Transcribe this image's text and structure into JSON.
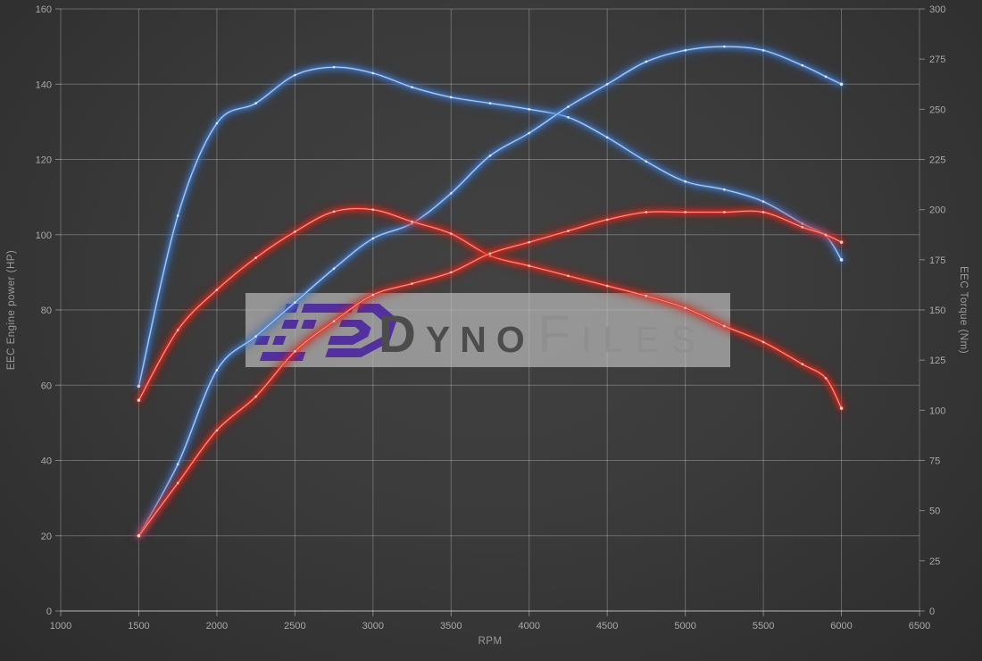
{
  "chart_data": {
    "type": "line",
    "title": "",
    "xlabel": "RPM",
    "ylabel_left": "EEC Engine power (HP)",
    "ylabel_right": "EEC Torque (Nm)",
    "xlim": [
      1000,
      6500
    ],
    "ylim_left": [
      0,
      160
    ],
    "ylim_right": [
      0,
      300
    ],
    "grid": true,
    "x_ticks": [
      1000,
      1500,
      2000,
      2500,
      3000,
      3500,
      4000,
      4500,
      5000,
      5500,
      6000,
      6500
    ],
    "y_left_ticks": [
      0,
      20,
      40,
      60,
      80,
      100,
      120,
      140,
      160
    ],
    "y_right_ticks": [
      0,
      25,
      50,
      75,
      100,
      125,
      150,
      175,
      200,
      225,
      250,
      275,
      300
    ],
    "x": [
      1500,
      1750,
      2000,
      2250,
      2500,
      2750,
      3000,
      3250,
      3500,
      3750,
      4000,
      4250,
      4500,
      4750,
      5000,
      5250,
      5500,
      5750,
      5900,
      6000
    ],
    "series": [
      {
        "name": "blue-torque",
        "axis": "right",
        "colors": {
          "glow": "#2a5da9",
          "main": "#4f86d3",
          "core": "#b9d6f6",
          "dot": "#e8f2ff"
        },
        "values": [
          112,
          197,
          243,
          253,
          267,
          271,
          268,
          261,
          256,
          253,
          250,
          246,
          236,
          224,
          214,
          210,
          204,
          193,
          187,
          175
        ]
      },
      {
        "name": "blue-power",
        "axis": "left",
        "colors": {
          "glow": "#2a5da9",
          "main": "#4f86d3",
          "core": "#b9d6f6",
          "dot": "#e8f2ff"
        },
        "values": [
          20,
          39,
          64,
          73,
          82,
          91,
          99,
          103,
          111,
          121,
          127,
          134,
          140,
          146,
          149,
          150,
          149,
          145,
          142,
          140
        ]
      },
      {
        "name": "red-torque",
        "axis": "right",
        "colors": {
          "glow": "#bd1410",
          "main": "#e23326",
          "core": "#ff9d88",
          "dot": "#ffd9cc"
        },
        "values": [
          105,
          140,
          160,
          176,
          189,
          199,
          200,
          194,
          188,
          177,
          172,
          167,
          162,
          157,
          151,
          142,
          134,
          123,
          116,
          101
        ]
      },
      {
        "name": "red-power",
        "axis": "left",
        "colors": {
          "glow": "#bd1410",
          "main": "#e23326",
          "core": "#ff9d88",
          "dot": "#ffd9cc"
        },
        "values": [
          20,
          34,
          48,
          57,
          69,
          77,
          84,
          87,
          90,
          95,
          98,
          101,
          104,
          106,
          106,
          106,
          106,
          102,
          100,
          98
        ]
      }
    ],
    "watermark": {
      "text_primary": "Dyno",
      "text_secondary": "Files",
      "box_color": "#c2c2c2",
      "logo_color": "#4f2b9f"
    },
    "style": {
      "grid_color": "rgba(255,255,255,0.26)",
      "spine_color": "rgba(255,255,255,0.40)",
      "tick_color": "rgba(255,255,255,0.38)"
    }
  }
}
